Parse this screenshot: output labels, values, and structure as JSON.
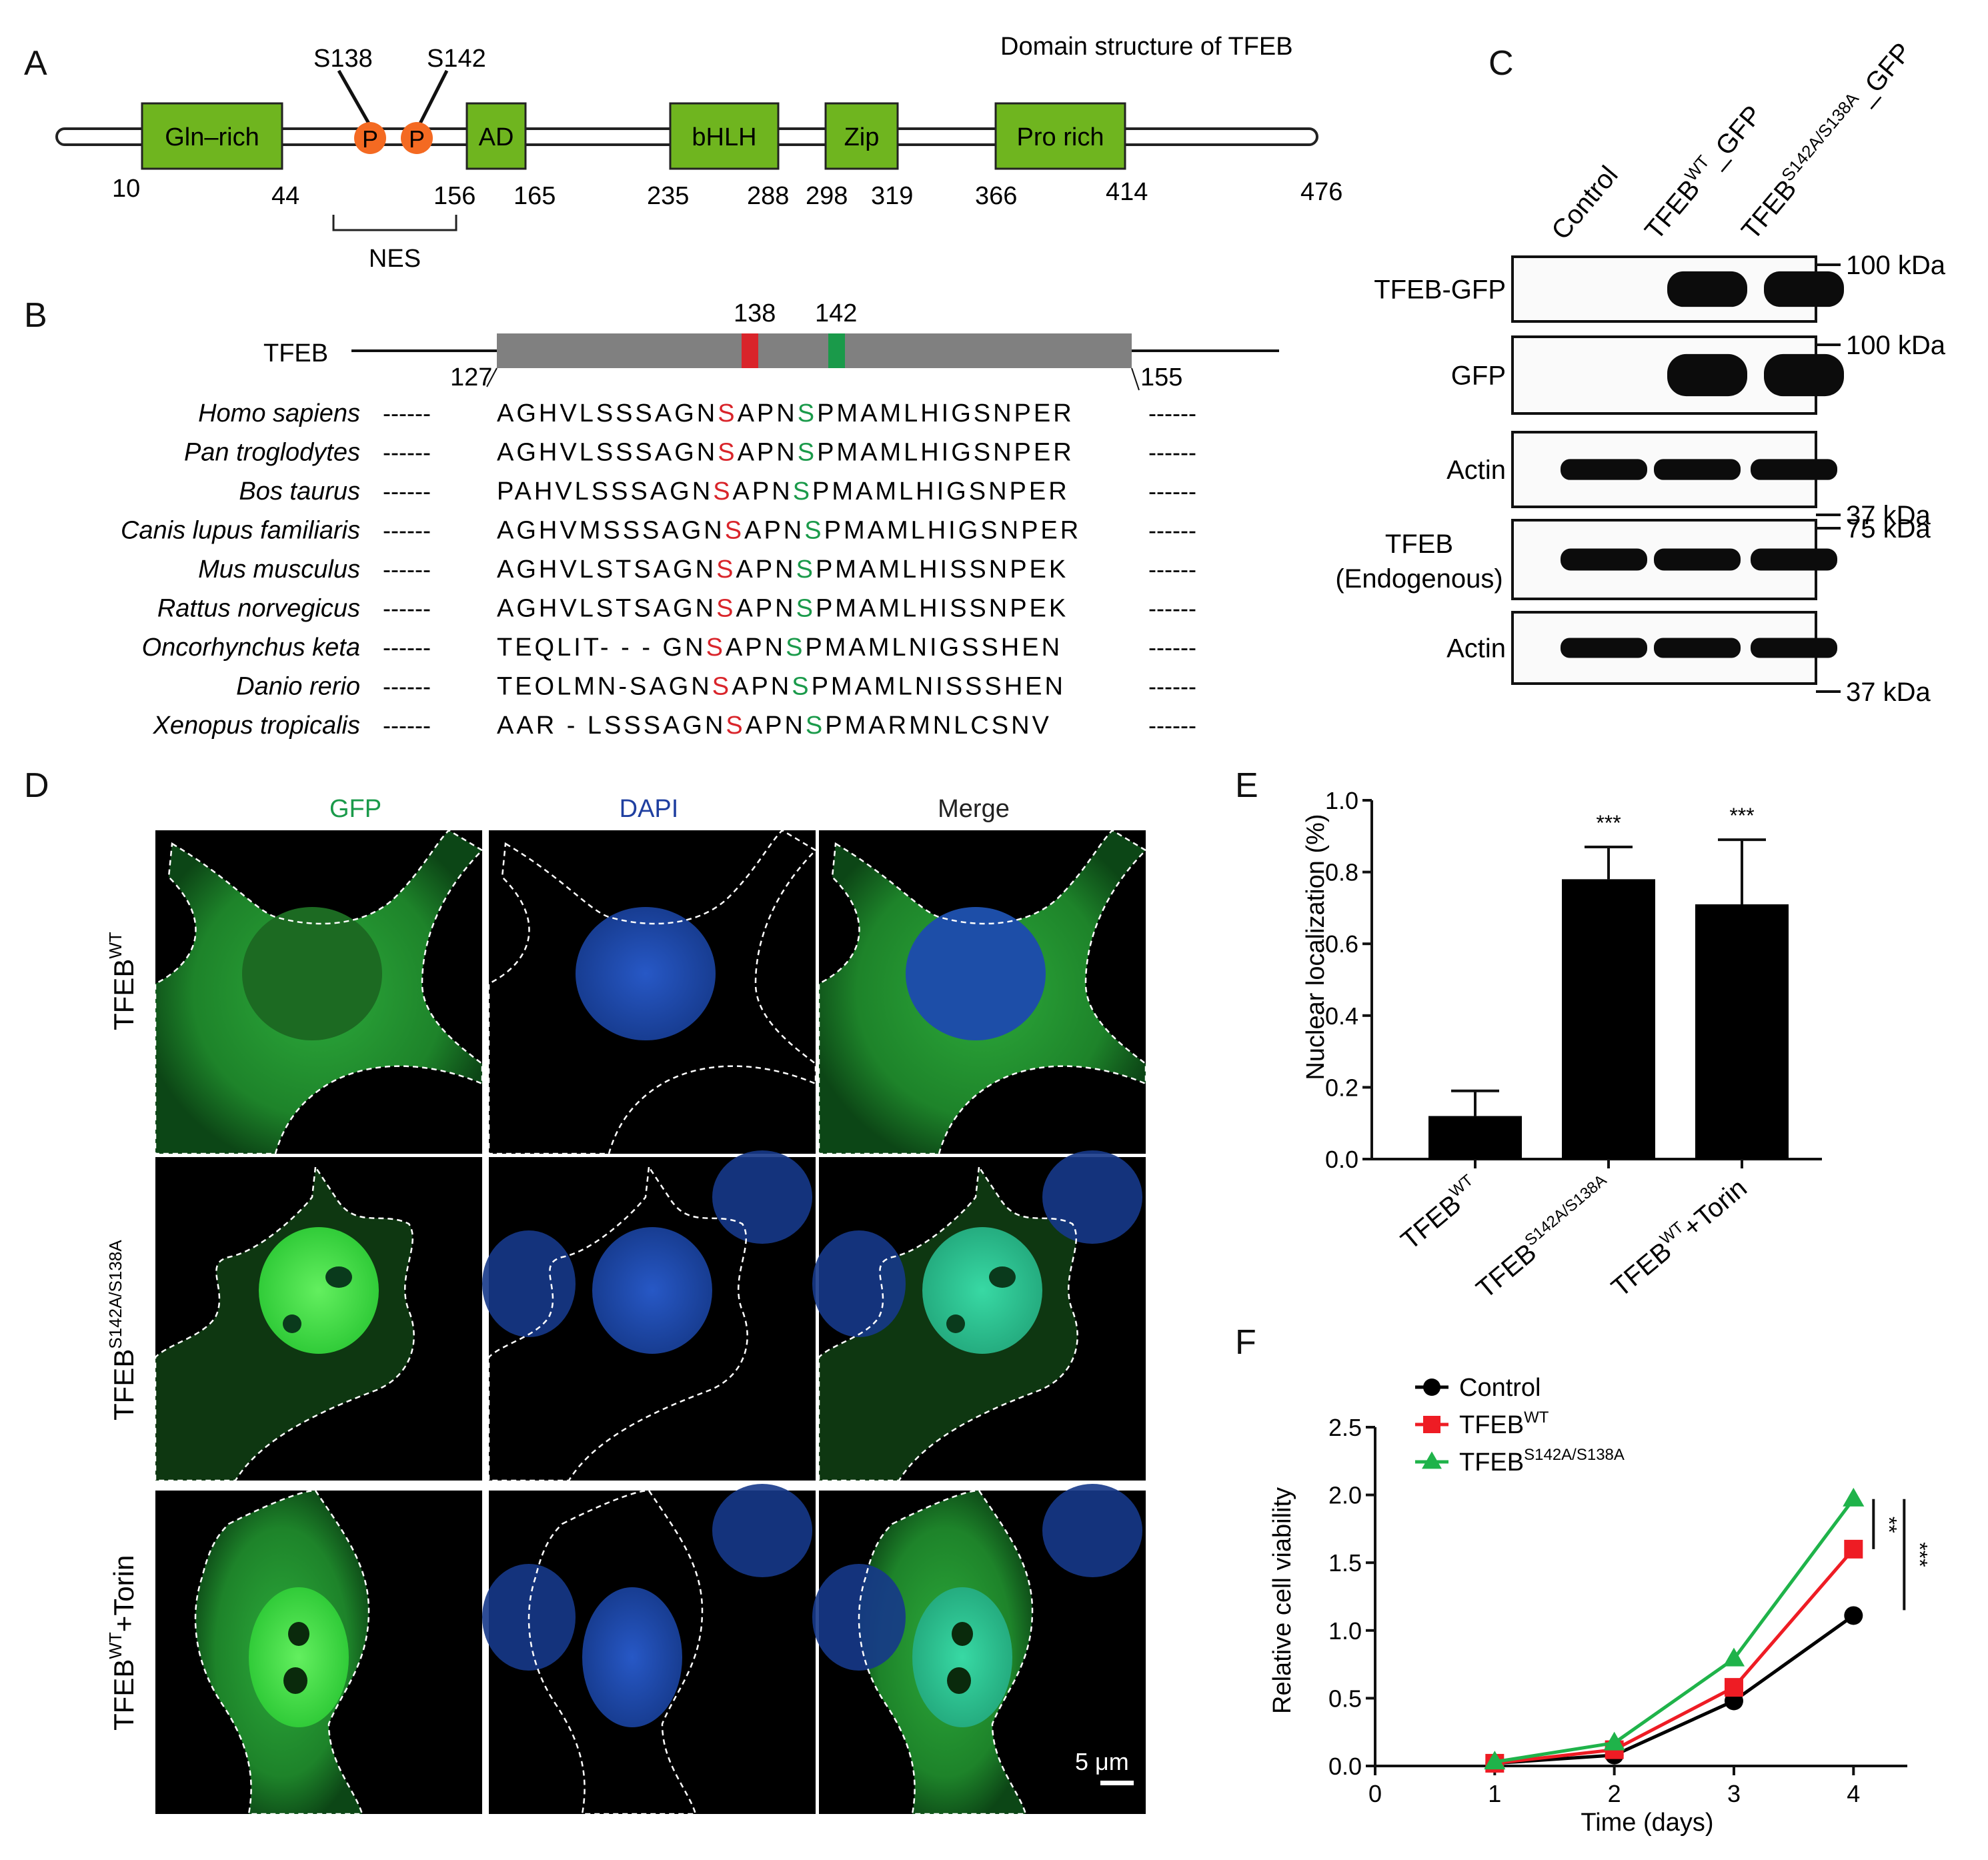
{
  "panels": {
    "A": "A",
    "B": "B",
    "C": "C",
    "D": "D",
    "E": "E",
    "F": "F"
  },
  "panel_a": {
    "title": "Domain structure of TFEB",
    "sites": [
      "S138",
      "S142"
    ],
    "phospho_label": "P",
    "domains": [
      {
        "label": "Gln–rich",
        "color": "#6fb51f"
      },
      {
        "label": "AD",
        "color": "#6fb51f"
      },
      {
        "label": "bHLH",
        "color": "#6fb51f"
      },
      {
        "label": "Zip",
        "color": "#6fb51f"
      },
      {
        "label": "Pro rich",
        "color": "#6fb51f"
      }
    ],
    "positions": [
      "10",
      "44",
      "156",
      "165",
      "235",
      "288",
      "298",
      "319",
      "366",
      "414",
      "476"
    ],
    "nes_label": "NES"
  },
  "panel_b": {
    "protein": "TFEB",
    "site1": "138",
    "site2": "142",
    "start": "127",
    "end": "155",
    "site1_color": "#d9242a",
    "site2_color": "#1a9a4a",
    "species": [
      {
        "name": "Homo sapiens",
        "pre": "AGHVLSSSAGN",
        "mid": "APN",
        "post": "PMAMLHIGSNPER"
      },
      {
        "name": "Pan troglodytes",
        "pre": "AGHVLSSSAGN",
        "mid": "APN",
        "post": "PMAMLHIGSNPER"
      },
      {
        "name": "Bos taurus",
        "pre": "PAHVLSSSAGN",
        "mid": "APN",
        "post": "PMAMLHIGSNPER"
      },
      {
        "name": "Canis lupus familiaris",
        "pre": "AGHVMSSSAGN",
        "mid": "APN",
        "post": "PMAMLHIGSNPER"
      },
      {
        "name": "Mus musculus",
        "pre": "AGHVLSTSAGN",
        "mid": "APN",
        "post": "PMAMLHISSNPEK"
      },
      {
        "name": "Rattus norvegicus",
        "pre": "AGHVLSTSAGN",
        "mid": "APN",
        "post": "PMAMLHISSNPEK"
      },
      {
        "name": "Oncorhynchus keta",
        "pre": "TEQLIT- - - GN",
        "mid": "APN",
        "post": "PMAMLNIGSSHEN"
      },
      {
        "name": "Danio rerio",
        "pre": "TEOLMN-SAGN",
        "mid": "APN",
        "post": "PMAMLNISSSHEN"
      },
      {
        "name": "Xenopus tropicalis",
        "pre": "AAR - LSSSAGN",
        "mid": "APN",
        "post": "PMARMNLCSNV"
      }
    ],
    "site_letter": "S",
    "dashes": "------"
  },
  "panel_c": {
    "lanes": [
      "Control",
      "TFEB",
      "TFEB"
    ],
    "lane_sups": [
      "",
      "WT",
      "S142A/S138A"
    ],
    "lane_suffix": [
      "",
      "_GFP",
      "_GFP"
    ],
    "blots": [
      {
        "label": "TFEB-GFP",
        "marker": "100 kDa",
        "bands": [
          0,
          1,
          1
        ]
      },
      {
        "label": "GFP",
        "marker": "100 kDa",
        "bands": [
          0,
          1,
          1
        ]
      },
      {
        "label": "Actin",
        "marker": "37 kDa",
        "bands": [
          1,
          1,
          1
        ]
      },
      {
        "label": "TFEB",
        "label2": "(Endogenous)",
        "marker": "75 kDa",
        "bands": [
          1,
          1,
          1
        ]
      },
      {
        "label": "Actin",
        "marker": "37 kDa",
        "bands": [
          1,
          1,
          1
        ]
      }
    ]
  },
  "panel_d": {
    "columns": [
      "GFP",
      "DAPI",
      "Merge"
    ],
    "column_colors": [
      "#1a9a4a",
      "#1f3fa0",
      "#222222"
    ],
    "rows": [
      {
        "base": "TFEB",
        "sup": "WT",
        "suffix": ""
      },
      {
        "base": "TFEB",
        "sup": "S142A/S138A",
        "suffix": ""
      },
      {
        "base": "TFEB",
        "sup": "WT",
        "suffix": "+Torin"
      }
    ],
    "scale_bar": "5 μm"
  },
  "chart_data": [
    {
      "type": "bar",
      "ylabel": "Nuclear localization (%)",
      "ylim": [
        0,
        1.0
      ],
      "yticks": [
        "0.0",
        "0.2",
        "0.4",
        "0.6",
        "0.8",
        "1.0"
      ],
      "categories": [
        {
          "base": "TFEB",
          "sup": "WT",
          "suffix": ""
        },
        {
          "base": "TFEB",
          "sup": "S142A/S138A",
          "suffix": ""
        },
        {
          "base": "TFEB",
          "sup": "WT",
          "suffix": "+Torin"
        }
      ],
      "values": [
        0.12,
        0.78,
        0.71
      ],
      "errors": [
        0.07,
        0.09,
        0.18
      ],
      "significance": [
        "",
        "***",
        "***"
      ]
    },
    {
      "type": "line",
      "xlabel": "Time (days)",
      "ylabel": "Relative cell viability",
      "xlim": [
        0,
        4
      ],
      "ylim": [
        0,
        2.5
      ],
      "xticks": [
        "0",
        "1",
        "2",
        "3",
        "4"
      ],
      "yticks": [
        "0.0",
        "0.5",
        "1.0",
        "1.5",
        "2.0",
        "2.5"
      ],
      "x": [
        1,
        2,
        3,
        4
      ],
      "series": [
        {
          "name": "Control",
          "sup": "",
          "color": "#000000",
          "marker": "circle",
          "values": [
            0.02,
            0.08,
            0.48,
            1.11
          ],
          "errors": [
            0,
            0,
            0,
            0.06
          ]
        },
        {
          "name": "TFEB",
          "sup": "WT",
          "color": "#ee1c24",
          "marker": "square",
          "values": [
            0.02,
            0.12,
            0.58,
            1.6
          ],
          "errors": [
            0,
            0,
            0,
            0.03
          ]
        },
        {
          "name": "TFEB",
          "sup": "S142A/S138A",
          "color": "#1fb34a",
          "marker": "triangle",
          "values": [
            0.03,
            0.17,
            0.79,
            1.97
          ],
          "errors": [
            0,
            0,
            0,
            0.04
          ]
        }
      ],
      "significance": [
        "**",
        "***"
      ]
    }
  ]
}
